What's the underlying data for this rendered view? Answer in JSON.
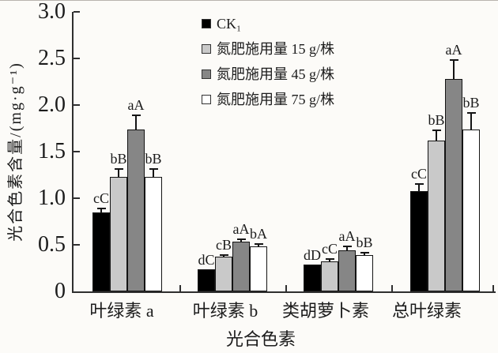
{
  "colors": {
    "background": "#fcfbf8",
    "axis": "#2f2f2f",
    "text": "#1b1b1b",
    "bar_ck1": "#000000",
    "bar_n15": "#c9c9c9",
    "bar_n45": "#868686",
    "bar_n75": "#ffffff"
  },
  "chart_data": {
    "type": "bar",
    "title": "",
    "xlabel": "光合色素",
    "ylabel": "光合色素含量/(mg·g⁻¹)",
    "ylim": [
      0,
      3.0
    ],
    "ytick_values": [
      0,
      0.5,
      1.0,
      1.5,
      2.0,
      2.5,
      3.0
    ],
    "ytick_labels": [
      "0",
      "0.5",
      "1.0",
      "1.5",
      "2.0",
      "2.5",
      "3.0"
    ],
    "grid": false,
    "legend_position": "upper-center",
    "error_bars": true,
    "categories": [
      "叶绿素 a",
      "叶绿素 b",
      "类胡萝卜素",
      "总叶绿素"
    ],
    "series": [
      {
        "name": "CK₁",
        "color": "#000000",
        "values": [
          0.85,
          0.24,
          0.29,
          1.08
        ],
        "errors": [
          0.05,
          0,
          0,
          0.08
        ],
        "sig_labels": [
          "cC",
          "dC",
          "dD",
          "cC"
        ]
      },
      {
        "name": "氮肥施用量 15 g/株",
        "color": "#c9c9c9",
        "values": [
          1.23,
          0.37,
          0.32,
          1.62
        ],
        "errors": [
          0.09,
          0.03,
          0.04,
          0.12
        ],
        "sig_labels": [
          "bB",
          "cB",
          "cC",
          "bB"
        ]
      },
      {
        "name": "氮肥施用量 45 g/株",
        "color": "#868686",
        "values": [
          1.74,
          0.53,
          0.44,
          2.28
        ],
        "errors": [
          0.16,
          0.04,
          0.05,
          0.21
        ],
        "sig_labels": [
          "aA",
          "aA",
          "aA",
          "aA"
        ]
      },
      {
        "name": "氮肥施用量 75 g/株",
        "color": "#ffffff",
        "values": [
          1.23,
          0.48,
          0.39,
          1.74
        ],
        "errors": [
          0.09,
          0.04,
          0.03,
          0.18
        ],
        "sig_labels": [
          "bB",
          "bA",
          "bB",
          "bB"
        ]
      }
    ]
  }
}
